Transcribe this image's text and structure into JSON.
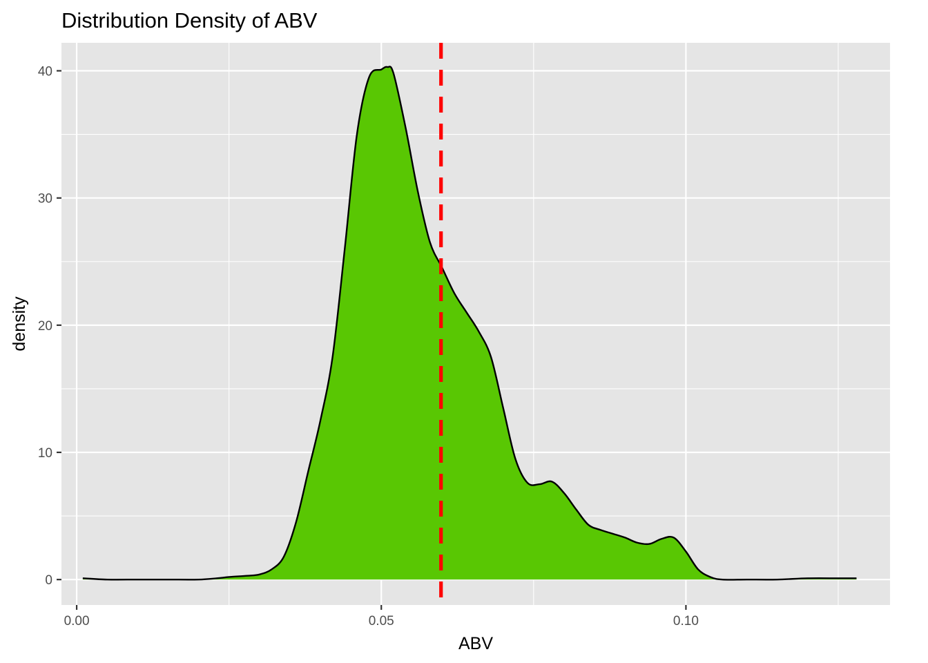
{
  "chart_data": {
    "type": "area",
    "title": "Distribution Density of ABV",
    "xlabel": "ABV",
    "ylabel": "density",
    "xlim": [
      -0.0025,
      0.1335
    ],
    "ylim": [
      -2.0,
      42.2
    ],
    "x_ticks": [
      {
        "value": 0.0,
        "label": "0.00"
      },
      {
        "value": 0.05,
        "label": "0.05"
      },
      {
        "value": 0.1,
        "label": "0.10"
      }
    ],
    "y_ticks": [
      {
        "value": 0,
        "label": "0"
      },
      {
        "value": 10,
        "label": "10"
      },
      {
        "value": 20,
        "label": "20"
      },
      {
        "value": 30,
        "label": "30"
      },
      {
        "value": 40,
        "label": "40"
      }
    ],
    "x_minor_gridlines": [
      0.025,
      0.075,
      0.125
    ],
    "y_minor_gridlines": [
      5,
      15,
      25,
      35
    ],
    "series": [
      {
        "x": [
          0.001,
          0.005,
          0.01,
          0.015,
          0.02,
          0.023,
          0.025,
          0.028,
          0.03,
          0.032,
          0.034,
          0.036,
          0.038,
          0.04,
          0.042,
          0.044,
          0.046,
          0.048,
          0.05,
          0.051,
          0.052,
          0.054,
          0.056,
          0.058,
          0.06,
          0.062,
          0.064,
          0.066,
          0.068,
          0.07,
          0.072,
          0.074,
          0.076,
          0.078,
          0.08,
          0.082,
          0.084,
          0.086,
          0.088,
          0.09,
          0.092,
          0.094,
          0.096,
          0.098,
          0.1,
          0.102,
          0.104,
          0.106,
          0.11,
          0.115,
          0.12,
          0.125,
          0.128
        ],
        "y": [
          0.1,
          0.0,
          0.0,
          0.0,
          0.0,
          0.1,
          0.2,
          0.3,
          0.4,
          0.8,
          1.8,
          4.5,
          8.5,
          12.5,
          17.5,
          26.0,
          35.0,
          39.5,
          40.1,
          40.3,
          39.8,
          35.5,
          30.5,
          26.5,
          24.5,
          22.5,
          21.0,
          19.5,
          17.5,
          13.5,
          9.5,
          7.6,
          7.5,
          7.7,
          6.8,
          5.5,
          4.3,
          3.9,
          3.6,
          3.3,
          2.9,
          2.8,
          3.2,
          3.3,
          2.2,
          0.8,
          0.2,
          0.0,
          0.0,
          0.0,
          0.1,
          0.1,
          0.1
        ],
        "fill": "#59c703",
        "stroke": "#000000"
      }
    ],
    "reference_line": {
      "x": 0.0598,
      "orientation": "vertical",
      "style": "dashed",
      "color": "#ff0000"
    },
    "panel_background": "#e5e5e5",
    "grid": true,
    "legend": "none"
  }
}
